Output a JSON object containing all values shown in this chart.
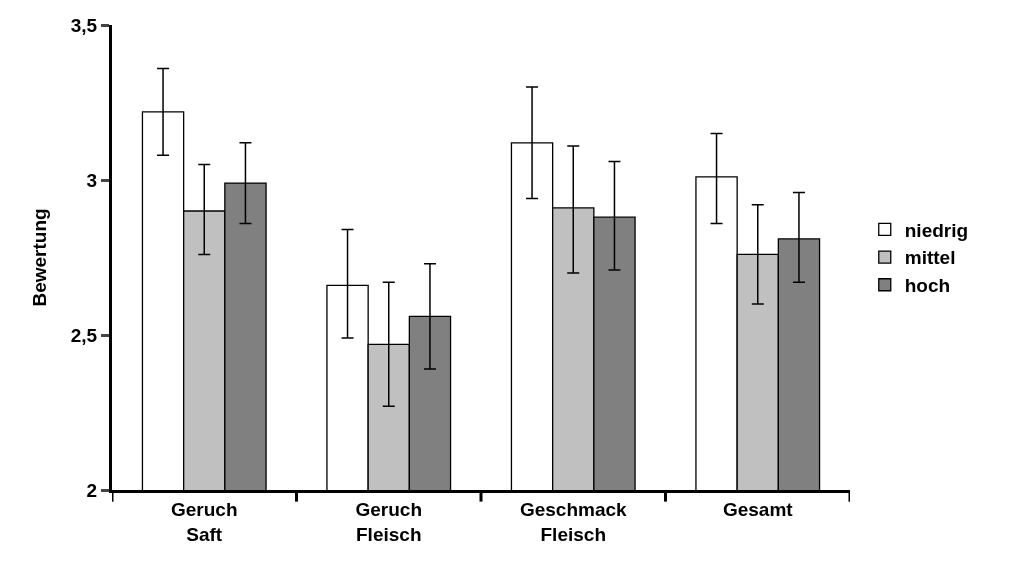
{
  "chart_data": {
    "type": "bar",
    "ylabel": "Bewertung",
    "categories": [
      "Geruch\nSaft",
      "Geruch\nFleisch",
      "Geschmack\nFleisch",
      "Gesamt"
    ],
    "series": [
      {
        "name": "niedrig",
        "color": "#ffffff",
        "values": [
          3.22,
          2.66,
          3.12,
          3.01
        ],
        "errors": [
          [
            3.08,
            3.36
          ],
          [
            2.49,
            2.84
          ],
          [
            2.94,
            3.3
          ],
          [
            2.86,
            3.15
          ]
        ]
      },
      {
        "name": "mittel",
        "color": "#c0c0c0",
        "values": [
          2.9,
          2.47,
          2.91,
          2.76
        ],
        "errors": [
          [
            2.76,
            3.05
          ],
          [
            2.27,
            2.67
          ],
          [
            2.7,
            3.11
          ],
          [
            2.6,
            2.92
          ]
        ]
      },
      {
        "name": "hoch",
        "color": "#808080",
        "values": [
          2.99,
          2.56,
          2.88,
          2.81
        ],
        "errors": [
          [
            2.86,
            3.12
          ],
          [
            2.39,
            2.73
          ],
          [
            2.71,
            3.06
          ],
          [
            2.67,
            2.96
          ]
        ]
      }
    ],
    "ylim": [
      2,
      3.5
    ],
    "yticks": [
      2,
      {
        "value": 2.5,
        "label": "2,5"
      },
      3,
      {
        "value": 3.5,
        "label": "3,5"
      }
    ],
    "grid": false,
    "legend": "right"
  }
}
